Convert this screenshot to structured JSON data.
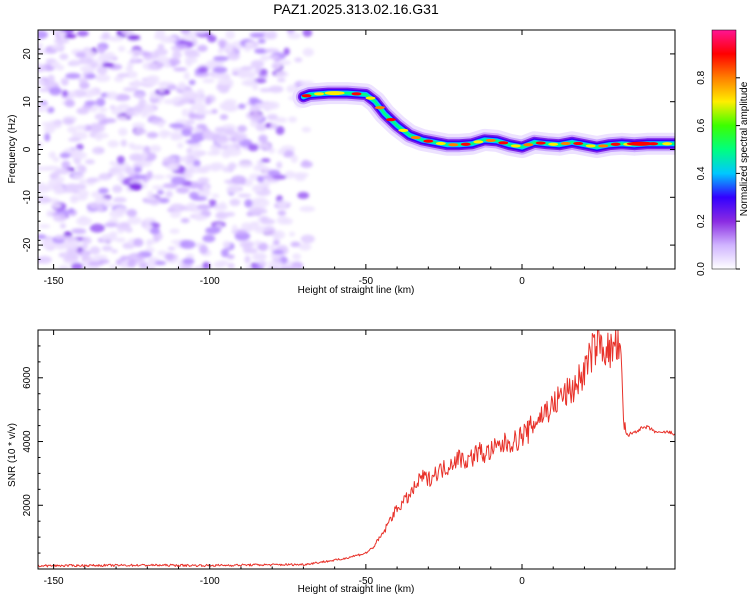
{
  "title": "PAZ1.2025.313.02.16.G31",
  "chart_data": [
    {
      "type": "heatmap",
      "name": "spectrogram",
      "xlabel": "Height of straight line (km)",
      "ylabel": "Frequency (Hz)",
      "xlim": [
        -155,
        49
      ],
      "ylim": [
        -25,
        25
      ],
      "xticks": [
        -150,
        -100,
        -50,
        0
      ],
      "yticks": [
        -20,
        -10,
        0,
        10,
        20
      ],
      "noise_region": {
        "x": [
          -155,
          -68
        ],
        "y": [
          -25,
          25
        ]
      },
      "ridge": {
        "x": [
          -70,
          -68,
          -62,
          -56,
          -50,
          -47,
          -44,
          -40,
          -36,
          -32,
          -28,
          -24,
          -20,
          -16,
          -12,
          -8,
          -4,
          0,
          4,
          8,
          12,
          16,
          20,
          24,
          28,
          32,
          36,
          40,
          44,
          49
        ],
        "y": [
          11,
          11.5,
          11.8,
          11.8,
          11.5,
          10,
          7.5,
          5,
          3,
          2,
          1.5,
          1,
          1,
          1.2,
          2,
          1.8,
          1,
          0.5,
          1.5,
          1.2,
          1,
          1.5,
          1,
          0.5,
          1,
          1.2,
          1,
          1.2,
          1.2,
          1.2
        ]
      },
      "colorbar": {
        "label": "Normalized spectral amplitude",
        "ticks": [
          "0.0",
          "0.2",
          "0.4",
          "0.6",
          "0.8"
        ],
        "tick_values": [
          0.0,
          0.2,
          0.4,
          0.6,
          0.8
        ],
        "range": [
          0,
          1
        ],
        "colors": [
          "#ffffff",
          "#d0b4ff",
          "#8a2be2",
          "#3300ff",
          "#00c8ff",
          "#00ff7f",
          "#3cff00",
          "#ffee00",
          "#ff7f00",
          "#ff0000",
          "#ff1493"
        ]
      }
    },
    {
      "type": "line",
      "name": "snr",
      "xlabel": "Height of straight line (km)",
      "ylabel": "SNR (10 * v/v)",
      "xlim": [
        -155,
        49
      ],
      "ylim": [
        0,
        7500
      ],
      "xticks": [
        -150,
        -100,
        -50,
        0
      ],
      "yticks": [
        2000,
        4000,
        6000
      ],
      "color": "#e8322a",
      "x": [
        -155,
        -140,
        -120,
        -100,
        -85,
        -70,
        -62,
        -58,
        -55,
        -52,
        -50,
        -48,
        -46,
        -44,
        -42,
        -40,
        -38,
        -36,
        -34,
        -32,
        -30,
        -28,
        -26,
        -24,
        -22,
        -20,
        -18,
        -16,
        -14,
        -12,
        -10,
        -8,
        -6,
        -4,
        -2,
        0,
        2,
        4,
        6,
        8,
        10,
        12,
        14,
        16,
        18,
        20,
        22,
        24,
        26,
        28,
        30,
        31,
        32,
        32.5,
        33,
        34,
        36,
        38,
        40,
        42,
        44,
        46,
        49
      ],
      "y": [
        100,
        110,
        120,
        110,
        130,
        140,
        250,
        300,
        380,
        450,
        500,
        650,
        900,
        1200,
        1600,
        1900,
        2100,
        2300,
        2600,
        2900,
        2800,
        3000,
        3100,
        3200,
        3400,
        3500,
        3400,
        3500,
        3700,
        3600,
        3700,
        3800,
        3900,
        4000,
        4000,
        4200,
        4300,
        4600,
        4800,
        5000,
        5100,
        5400,
        5500,
        5600,
        5900,
        6200,
        6700,
        7100,
        7000,
        6800,
        7000,
        6900,
        6100,
        4500,
        4300,
        4200,
        4300,
        4400,
        4450,
        4350,
        4250,
        4300,
        4250
      ]
    }
  ]
}
